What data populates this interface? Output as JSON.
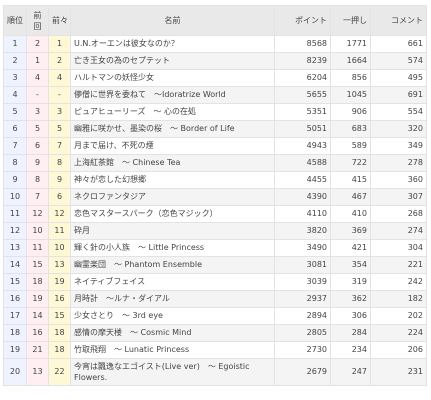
{
  "table": {
    "headers": {
      "rank": "順位",
      "prev": "前回",
      "prev2": "前々",
      "name": "名前",
      "points": "ポイント",
      "first": "一押し",
      "comments": "コメント"
    },
    "rows": [
      {
        "rank": "1",
        "prev": "2",
        "prev2": "1",
        "name": "U.N.オーエンは彼女なのか？",
        "points": "8568",
        "first": "1771",
        "comments": "661"
      },
      {
        "rank": "2",
        "prev": "1",
        "prev2": "2",
        "name": "亡き王女の為のセプテット",
        "points": "8239",
        "first": "1664",
        "comments": "574"
      },
      {
        "rank": "3",
        "prev": "4",
        "prev2": "4",
        "name": "ハルトマンの妖怪少女",
        "points": "6204",
        "first": "856",
        "comments": "495"
      },
      {
        "rank": "4",
        "prev": "-",
        "prev2": "-",
        "name": "儚僧に世界を委ねて　～Idoratrize World",
        "points": "5655",
        "first": "1045",
        "comments": "691"
      },
      {
        "rank": "5",
        "prev": "3",
        "prev2": "3",
        "name": "ピュアヒューリーズ　～ 心の在処",
        "points": "5351",
        "first": "906",
        "comments": "554"
      },
      {
        "rank": "6",
        "prev": "5",
        "prev2": "5",
        "name": "幽雅に咲かせ、墨染の桜　～ Border of Life",
        "points": "5051",
        "first": "683",
        "comments": "320"
      },
      {
        "rank": "7",
        "prev": "6",
        "prev2": "7",
        "name": "月まで届け、不死の煙",
        "points": "4943",
        "first": "589",
        "comments": "349"
      },
      {
        "rank": "8",
        "prev": "9",
        "prev2": "8",
        "name": "上海紅茶館　～ Chinese Tea",
        "points": "4588",
        "first": "722",
        "comments": "278"
      },
      {
        "rank": "9",
        "prev": "8",
        "prev2": "9",
        "name": "神々が恋した幻想郷",
        "points": "4455",
        "first": "415",
        "comments": "360"
      },
      {
        "rank": "10",
        "prev": "7",
        "prev2": "6",
        "name": "ネクロファンタジア",
        "points": "4390",
        "first": "467",
        "comments": "307"
      },
      {
        "rank": "11",
        "prev": "12",
        "prev2": "12",
        "name": "恋色マスタースパーク（恋色マジック）",
        "points": "4110",
        "first": "410",
        "comments": "268"
      },
      {
        "rank": "12",
        "prev": "10",
        "prev2": "11",
        "name": "砕月",
        "points": "3820",
        "first": "369",
        "comments": "274"
      },
      {
        "rank": "13",
        "prev": "11",
        "prev2": "10",
        "name": "輝く針の小人族　～ Little Princess",
        "points": "3490",
        "first": "421",
        "comments": "304"
      },
      {
        "rank": "14",
        "prev": "15",
        "prev2": "13",
        "name": "幽霊楽団　～ Phantom Ensemble",
        "points": "3081",
        "first": "354",
        "comments": "221"
      },
      {
        "rank": "15",
        "prev": "18",
        "prev2": "19",
        "name": "ネイティブフェイス",
        "points": "3039",
        "first": "319",
        "comments": "242"
      },
      {
        "rank": "16",
        "prev": "19",
        "prev2": "16",
        "name": "月時計　～ルナ・ダイアル",
        "points": "2937",
        "first": "362",
        "comments": "182"
      },
      {
        "rank": "17",
        "prev": "14",
        "prev2": "15",
        "name": "少女さとり　～ 3rd eye",
        "points": "2894",
        "first": "306",
        "comments": "202"
      },
      {
        "rank": "18",
        "prev": "16",
        "prev2": "18",
        "name": "感情の摩天楼　～ Cosmic Mind",
        "points": "2805",
        "first": "284",
        "comments": "224"
      },
      {
        "rank": "19",
        "prev": "21",
        "prev2": "18",
        "name": "竹取飛翔　～ Lunatic Princess",
        "points": "2730",
        "first": "234",
        "comments": "206"
      },
      {
        "rank": "20",
        "prev": "13",
        "prev2": "22",
        "name": "今宵は飄逸なエゴイスト(Live ver)　～ Egoistic Flowers.",
        "points": "2679",
        "first": "247",
        "comments": "231"
      }
    ]
  }
}
